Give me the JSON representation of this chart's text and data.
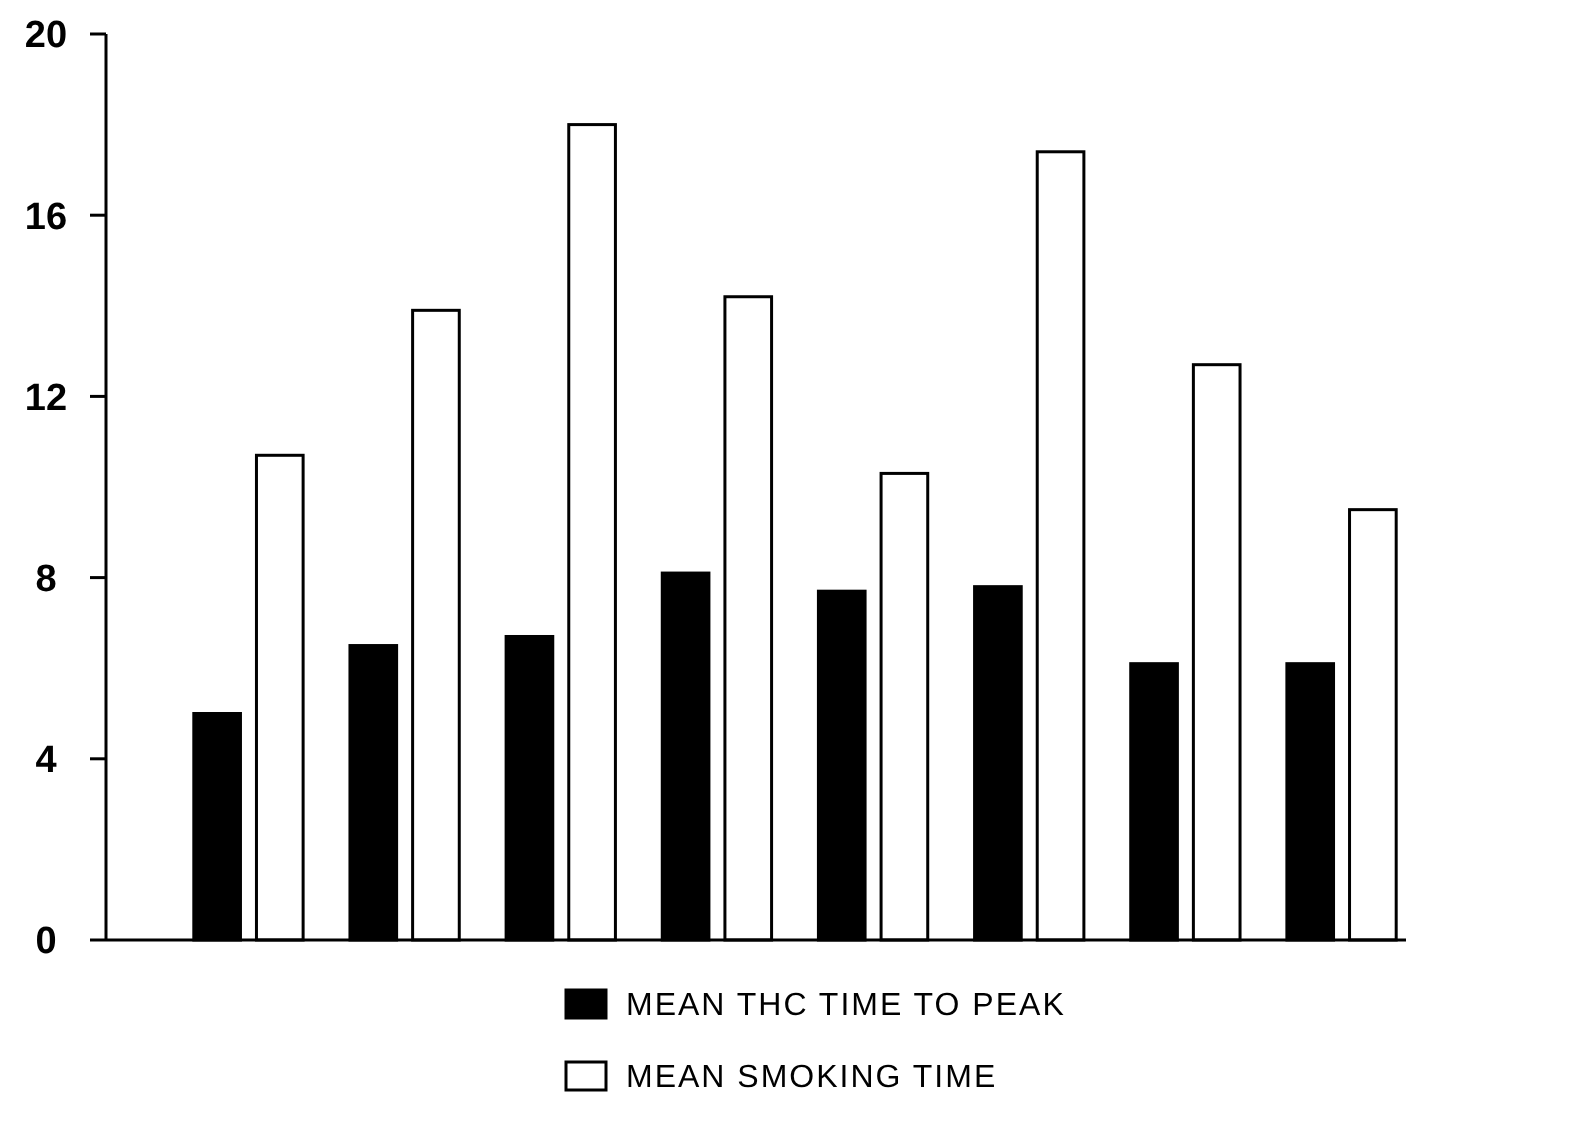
{
  "chart_data": {
    "type": "bar",
    "categories": [
      null,
      null,
      null,
      null,
      null,
      null,
      null,
      null
    ],
    "series": [
      {
        "name": "MEAN THC TIME TO PEAK",
        "color": "#000000",
        "values": [
          5.0,
          6.5,
          6.7,
          8.1,
          7.7,
          7.8,
          6.1,
          6.1
        ]
      },
      {
        "name": "MEAN SMOKING TIME",
        "color": "#ffffff",
        "values": [
          10.7,
          13.9,
          18.0,
          14.2,
          10.3,
          17.4,
          12.7,
          9.5
        ]
      }
    ],
    "ylim": [
      0,
      20
    ],
    "yticks": [
      0,
      4,
      8,
      12,
      16,
      20
    ],
    "grid": false,
    "legend": "bottom"
  }
}
